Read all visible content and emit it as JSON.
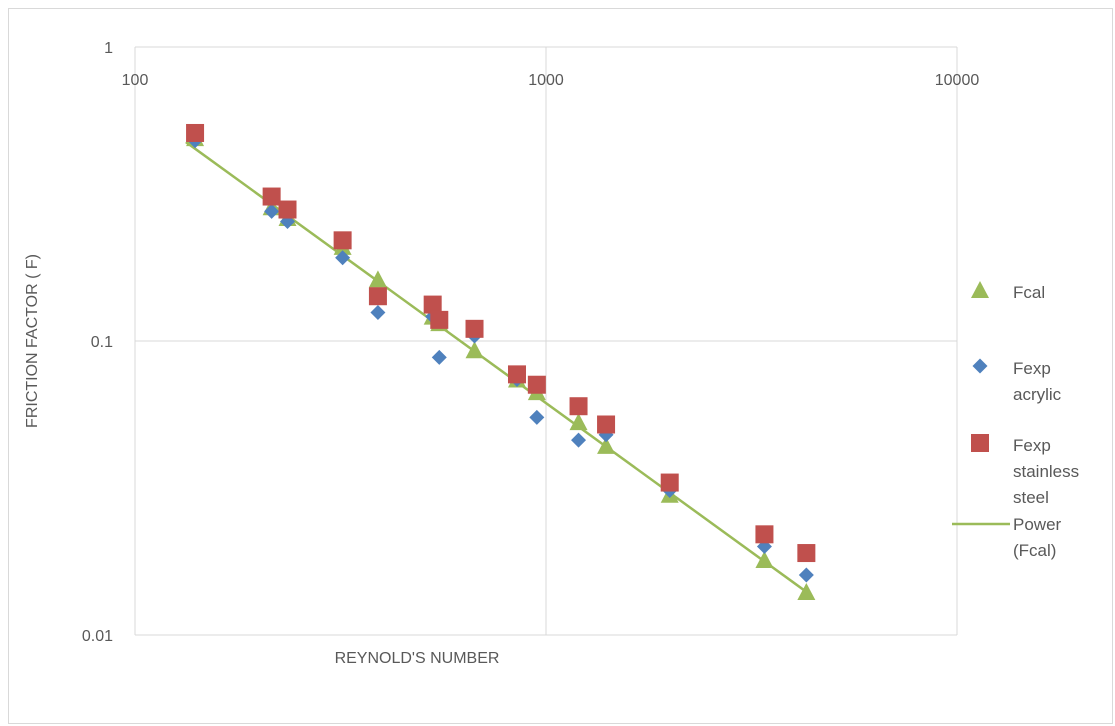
{
  "chart_data": {
    "type": "scatter",
    "title": "",
    "xlabel": "REYNOLD'S NUMBER",
    "ylabel": "FRICTION FACTOR ( F)",
    "x_scale": "log",
    "y_scale": "log",
    "xlim": [
      100,
      10000
    ],
    "ylim": [
      0.01,
      1
    ],
    "x_ticks": [
      100,
      1000,
      10000
    ],
    "x_tick_labels": [
      "100",
      "1000",
      "10000"
    ],
    "y_ticks": [
      1,
      0.1,
      0.01
    ],
    "y_tick_labels": [
      "1",
      "0.1",
      "0.01"
    ],
    "grid": true,
    "legend_position": "right",
    "series": [
      {
        "name": "Fcal",
        "marker": "triangle",
        "color": "#9bbb59",
        "x": [
          140,
          215,
          235,
          320,
          390,
          530,
          550,
          670,
          850,
          950,
          1200,
          1400,
          2000,
          3400,
          4300
        ],
        "y": [
          0.49,
          0.285,
          0.262,
          0.209,
          0.162,
          0.121,
          0.115,
          0.093,
          0.074,
          0.067,
          0.053,
          0.044,
          0.03,
          0.018,
          0.014
        ]
      },
      {
        "name": "Fexp acrylic",
        "marker": "diamond",
        "color": "#4f81bd",
        "x": [
          140,
          215,
          235,
          320,
          390,
          530,
          550,
          670,
          850,
          950,
          1200,
          1400,
          2000,
          3400,
          4300
        ],
        "y": [
          0.48,
          0.276,
          0.255,
          0.192,
          0.125,
          0.121,
          0.088,
          0.104,
          0.074,
          0.055,
          0.046,
          0.048,
          0.031,
          0.02,
          0.016
        ]
      },
      {
        "name": "Fexp stainless steel",
        "marker": "square",
        "color": "#c0504d",
        "x": [
          140,
          215,
          235,
          320,
          390,
          530,
          550,
          670,
          850,
          950,
          1200,
          1400,
          2000,
          3400,
          4300
        ],
        "y": [
          0.51,
          0.31,
          0.28,
          0.22,
          0.142,
          0.133,
          0.118,
          0.11,
          0.077,
          0.071,
          0.06,
          0.052,
          0.033,
          0.022,
          0.019
        ]
      },
      {
        "name": "Power (Fcal)",
        "marker": "line",
        "color": "#9bbb59",
        "x": [
          133,
          4400
        ],
        "y": [
          0.475,
          0.0137
        ]
      }
    ]
  }
}
